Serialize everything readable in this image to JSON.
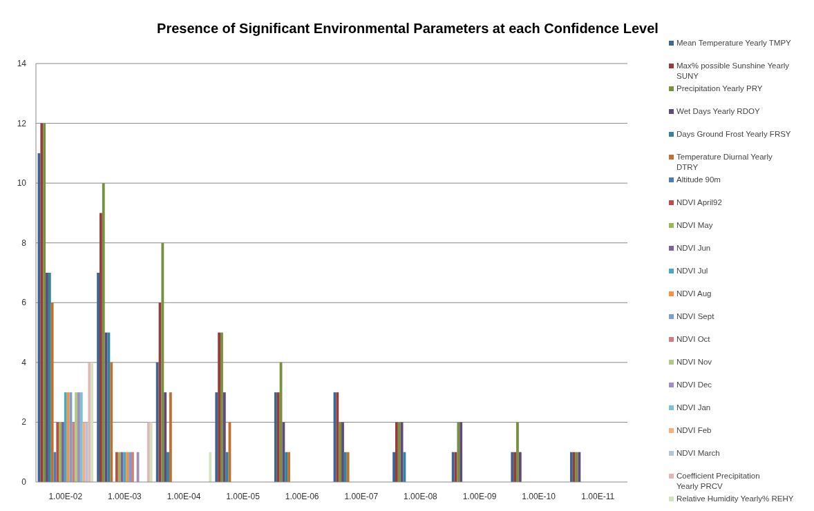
{
  "chart_data": {
    "type": "bar",
    "title": "Presence of Significant Environmental Parameters at each Confidence Level",
    "categories": [
      "1.00E-02",
      "1.00E-03",
      "1.00E-04",
      "1.00E-05",
      "1.00E-06",
      "1.00E-07",
      "1.00E-08",
      "1.00E-09",
      "1.00E-10",
      "1.00E-11"
    ],
    "ylim": [
      0,
      14
    ],
    "yticks": [
      0,
      2,
      4,
      6,
      8,
      10,
      12,
      14
    ],
    "grid": "y",
    "legend": "right",
    "series": [
      {
        "name": "Mean Temperature Yearly TMPY",
        "color": "#3a6595",
        "values": [
          11,
          7,
          4,
          3,
          3,
          3,
          1,
          1,
          1,
          1
        ]
      },
      {
        "name": "Max% possible Sunshine Yearly SUNY",
        "color": "#963c3a",
        "values": [
          12,
          9,
          6,
          5,
          3,
          3,
          2,
          1,
          1,
          1
        ]
      },
      {
        "name": "Precipitation Yearly PRY",
        "color": "#77913f",
        "values": [
          12,
          10,
          8,
          5,
          4,
          2,
          2,
          2,
          2,
          1
        ]
      },
      {
        "name": "Wet Days Yearly RDOY",
        "color": "#604a7b",
        "values": [
          7,
          5,
          3,
          3,
          2,
          2,
          2,
          2,
          1,
          1
        ]
      },
      {
        "name": "Days Ground Frost Yearly FRSY",
        "color": "#31859c",
        "values": [
          7,
          5,
          1,
          1,
          1,
          1,
          1,
          0,
          0,
          0
        ]
      },
      {
        "name": "Temperature Diurnal Yearly DTRY",
        "color": "#c0712f",
        "values": [
          6,
          4,
          3,
          2,
          1,
          1,
          0,
          0,
          0,
          0
        ]
      },
      {
        "name": "Altitude 90m",
        "color": "#4a7ebb",
        "values": [
          1,
          0,
          0,
          0,
          0,
          0,
          0,
          0,
          0,
          0
        ]
      },
      {
        "name": "NDVI April92",
        "color": "#be4b48",
        "values": [
          2,
          1,
          0,
          0,
          0,
          0,
          0,
          0,
          0,
          0
        ]
      },
      {
        "name": "NDVI May",
        "color": "#98b954",
        "values": [
          2,
          1,
          0,
          0,
          0,
          0,
          0,
          0,
          0,
          0
        ]
      },
      {
        "name": "NDVI Jun",
        "color": "#7d60a0",
        "values": [
          2,
          1,
          0,
          0,
          0,
          0,
          0,
          0,
          0,
          0
        ]
      },
      {
        "name": "NDVI Jul",
        "color": "#46aac5",
        "values": [
          3,
          1,
          0,
          0,
          0,
          0,
          0,
          0,
          0,
          0
        ]
      },
      {
        "name": "NDVI Aug",
        "color": "#f69240",
        "values": [
          3,
          1,
          0,
          0,
          0,
          0,
          0,
          0,
          0,
          0
        ]
      },
      {
        "name": "NDVI Sept",
        "color": "#7b9fd0",
        "values": [
          3,
          1,
          0,
          0,
          0,
          0,
          0,
          0,
          0,
          0
        ]
      },
      {
        "name": "NDVI Oct",
        "color": "#d07f7d",
        "values": [
          2,
          1,
          0,
          0,
          0,
          0,
          0,
          0,
          0,
          0
        ]
      },
      {
        "name": "NDVI Nov",
        "color": "#b0ca84",
        "values": [
          3,
          0,
          0,
          0,
          0,
          0,
          0,
          0,
          0,
          0
        ]
      },
      {
        "name": "NDVI Dec",
        "color": "#a08fbd",
        "values": [
          3,
          1,
          0,
          0,
          0,
          0,
          0,
          0,
          0,
          0
        ]
      },
      {
        "name": "NDVI Jan",
        "color": "#7cc1d6",
        "values": [
          3,
          0,
          0,
          0,
          0,
          0,
          0,
          0,
          0,
          0
        ]
      },
      {
        "name": "NDVI Feb",
        "color": "#f9ad7a",
        "values": [
          2,
          0,
          0,
          0,
          0,
          0,
          0,
          0,
          0,
          0
        ]
      },
      {
        "name": "NDVI March",
        "color": "#b3c3e0",
        "values": [
          2,
          0,
          0,
          0,
          0,
          0,
          0,
          0,
          0,
          0
        ]
      },
      {
        "name": "Coefficient Precipitation Yearly PRCV",
        "color": "#e2b8b7",
        "values": [
          4,
          2,
          0,
          0,
          0,
          0,
          0,
          0,
          0,
          0
        ]
      },
      {
        "name": "Relative Humidity Yearly% REHY",
        "color": "#d4e2bd",
        "values": [
          4,
          2,
          1,
          0,
          0,
          0,
          0,
          0,
          0,
          0
        ]
      }
    ]
  }
}
